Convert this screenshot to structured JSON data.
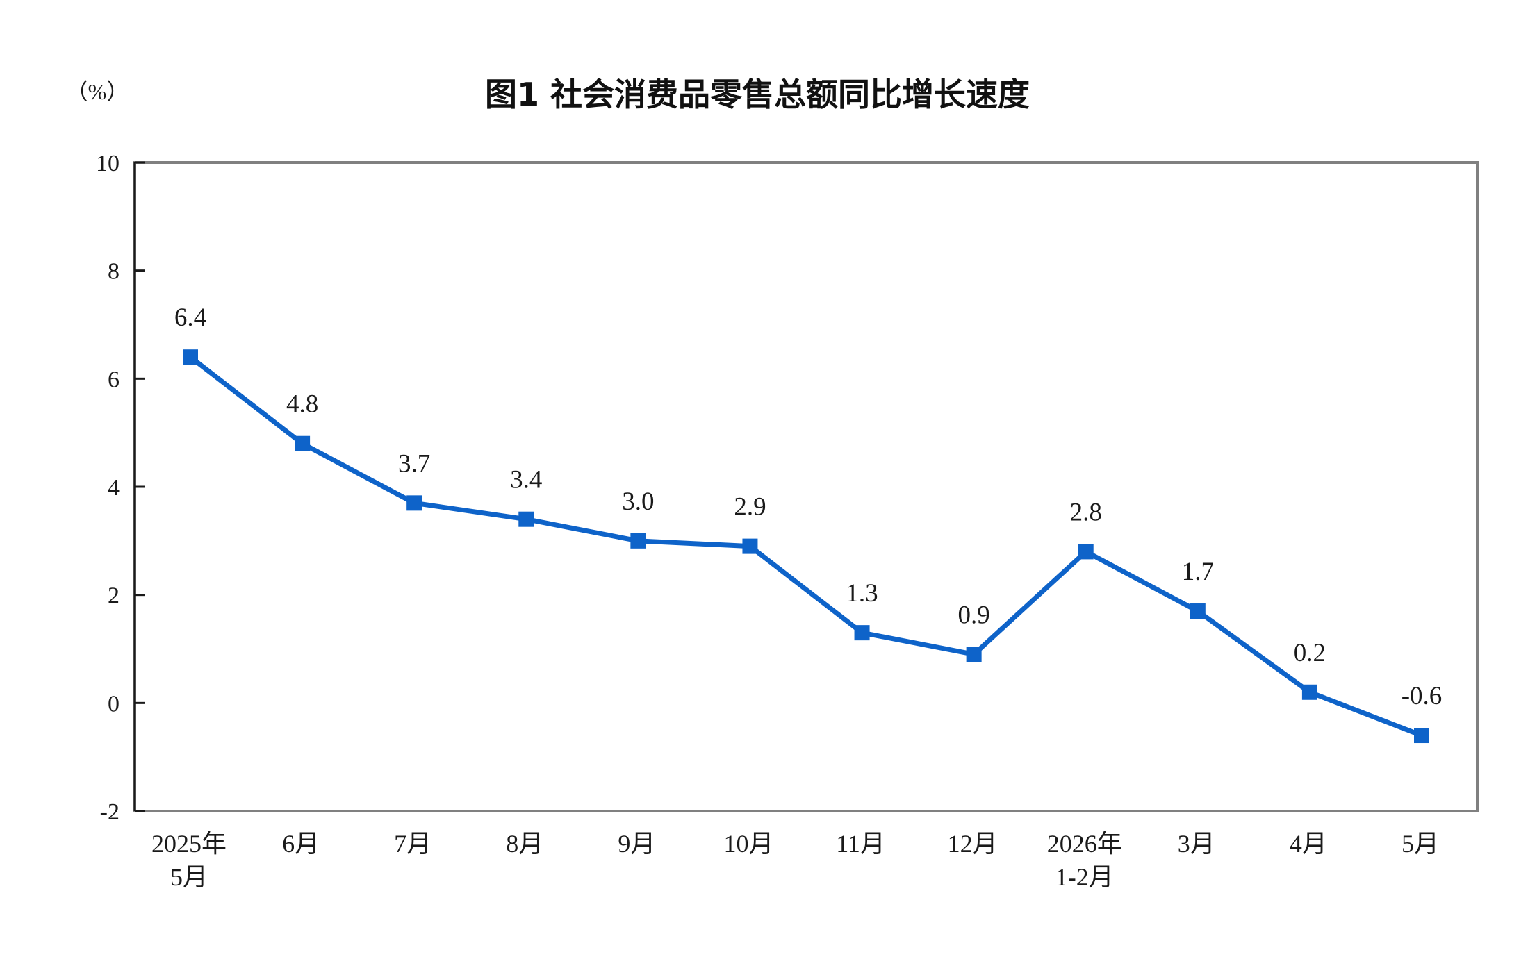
{
  "chart_data": {
    "type": "line",
    "title": "图1  社会消费品零售总额同比增长速度",
    "unit_label": "（%）",
    "xlabel": "",
    "ylabel": "",
    "categories": [
      [
        "2025年",
        "5月"
      ],
      [
        "6月"
      ],
      [
        "7月"
      ],
      [
        "8月"
      ],
      [
        "9月"
      ],
      [
        "10月"
      ],
      [
        "11月"
      ],
      [
        "12月"
      ],
      [
        "2026年",
        "1-2月"
      ],
      [
        "3月"
      ],
      [
        "4月"
      ],
      [
        "5月"
      ]
    ],
    "series": [
      {
        "values": [
          6.4,
          4.8,
          3.7,
          3.4,
          3.0,
          2.9,
          1.3,
          0.9,
          2.8,
          1.7,
          0.2,
          -0.6
        ],
        "labels": [
          "6.4",
          "4.8",
          "3.7",
          "3.4",
          "3.0",
          "2.9",
          "1.3",
          "0.9",
          "2.8",
          "1.7",
          "0.2",
          "-0.6"
        ],
        "color": "#0e63c9"
      }
    ],
    "ylim": [
      -2,
      10
    ],
    "yticks": [
      -2,
      0,
      2,
      4,
      6,
      8,
      10
    ],
    "grid": false,
    "legend": "none",
    "frame_color": "#808080",
    "axis_color": "#1a1a1a"
  }
}
